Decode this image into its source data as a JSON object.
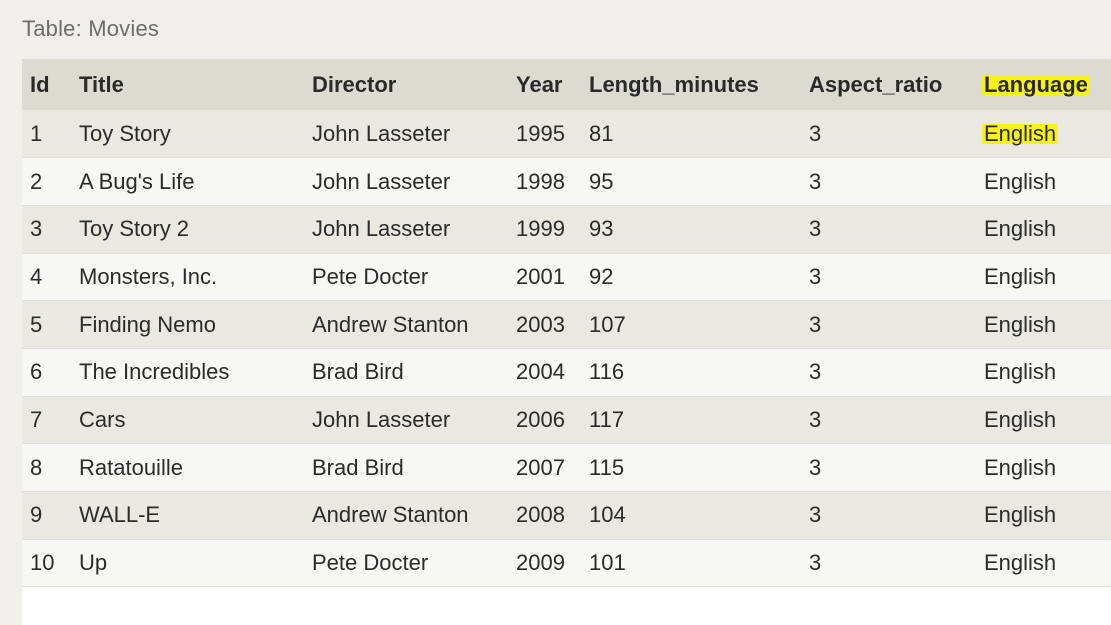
{
  "caption": "Table: Movies",
  "columns": [
    "Id",
    "Title",
    "Director",
    "Year",
    "Length_minutes",
    "Aspect_ratio",
    "Language"
  ],
  "rows": [
    {
      "id": "1",
      "title": "Toy Story",
      "director": "John Lasseter",
      "year": "1995",
      "length": "81",
      "aspect": "3",
      "language": "English"
    },
    {
      "id": "2",
      "title": "A Bug's Life",
      "director": "John Lasseter",
      "year": "1998",
      "length": "95",
      "aspect": "3",
      "language": "English"
    },
    {
      "id": "3",
      "title": "Toy Story 2",
      "director": "John Lasseter",
      "year": "1999",
      "length": "93",
      "aspect": "3",
      "language": "English"
    },
    {
      "id": "4",
      "title": "Monsters, Inc.",
      "director": "Pete Docter",
      "year": "2001",
      "length": "92",
      "aspect": "3",
      "language": "English"
    },
    {
      "id": "5",
      "title": "Finding Nemo",
      "director": "Andrew Stanton",
      "year": "2003",
      "length": "107",
      "aspect": "3",
      "language": "English"
    },
    {
      "id": "6",
      "title": "The Incredibles",
      "director": "Brad Bird",
      "year": "2004",
      "length": "116",
      "aspect": "3",
      "language": "English"
    },
    {
      "id": "7",
      "title": "Cars",
      "director": "John Lasseter",
      "year": "2006",
      "length": "117",
      "aspect": "3",
      "language": "English"
    },
    {
      "id": "8",
      "title": "Ratatouille",
      "director": "Brad Bird",
      "year": "2007",
      "length": "115",
      "aspect": "3",
      "language": "English"
    },
    {
      "id": "9",
      "title": "WALL-E",
      "director": "Andrew Stanton",
      "year": "2008",
      "length": "104",
      "aspect": "3",
      "language": "English"
    },
    {
      "id": "10",
      "title": "Up",
      "director": "Pete Docter",
      "year": "2009",
      "length": "101",
      "aspect": "3",
      "language": "English"
    }
  ],
  "highlight_color": "#f7f21a"
}
